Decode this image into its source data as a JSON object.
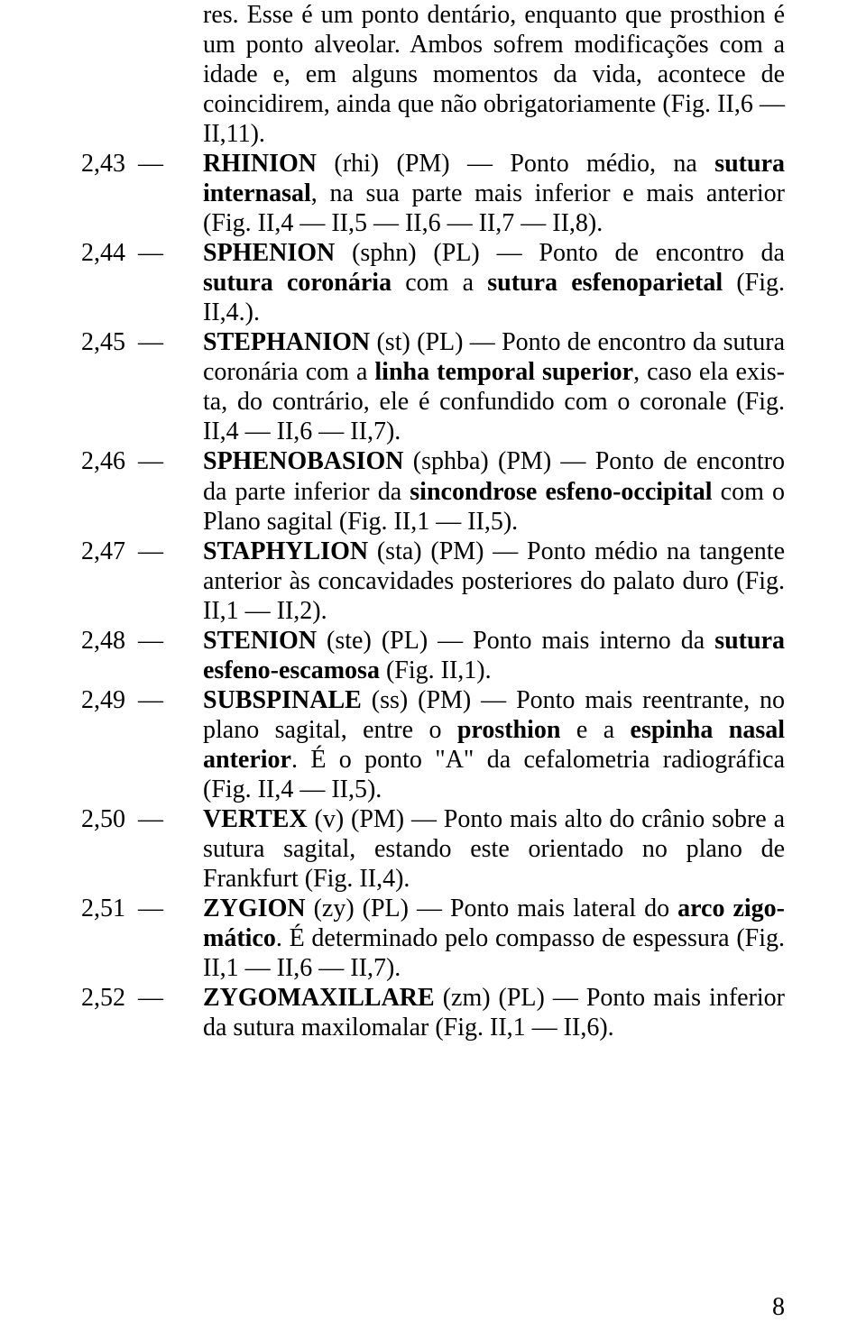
{
  "page_number": "8",
  "intro_text": "res. Esse é um ponto dentário, enquanto que prosthion é um ponto alveolar. Ambos sofrem modificações com a idade e, em alguns momentos da vida, acontece de coinci­direm, ainda que não obrigatoriamente (Fig. II,6 — II,11).",
  "entries": [
    {
      "num": "2,43",
      "sep": "—",
      "runs": [
        {
          "t": "RHINION",
          "b": true
        },
        {
          "t": " (rhi) (PM) — Ponto médio, na ",
          "b": false
        },
        {
          "t": "sutura interna­sal",
          "b": true
        },
        {
          "t": ", na sua parte mais inferior e mais anterior (Fig. II,4 — II,5 — II,6 — II,7 — II,8).",
          "b": false
        }
      ]
    },
    {
      "num": "2,44",
      "sep": "—",
      "runs": [
        {
          "t": "SPHENION",
          "b": true
        },
        {
          "t": " (sphn) (PL) — Ponto de encontro da ",
          "b": false
        },
        {
          "t": "sutura coronária",
          "b": true
        },
        {
          "t": " com a ",
          "b": false
        },
        {
          "t": "sutura esfenoparietal",
          "b": true
        },
        {
          "t": " (Fig. II,4.).",
          "b": false
        }
      ]
    },
    {
      "num": "2,45",
      "sep": "—",
      "runs": [
        {
          "t": "STEPHANION",
          "b": true
        },
        {
          "t": " (st) (PL) — Ponto de encontro da sutura coronária com a ",
          "b": false
        },
        {
          "t": "linha temporal superior",
          "b": true
        },
        {
          "t": ", caso ela exis­ta, do contrário, ele é confundido com o coronale (Fig. II,4 — II,6 — II,7).",
          "b": false
        }
      ]
    },
    {
      "num": "2,46",
      "sep": "—",
      "runs": [
        {
          "t": "SPHENOBASION",
          "b": true
        },
        {
          "t": " (sphba) (PM) — Ponto de encontro da parte inferior da ",
          "b": false
        },
        {
          "t": "sincondrose esfeno-occipital",
          "b": true
        },
        {
          "t": " com o Pla­no sagital (Fig. II,1 — II,5).",
          "b": false
        }
      ]
    },
    {
      "num": "2,47",
      "sep": "—",
      "runs": [
        {
          "t": "STAPHYLION",
          "b": true
        },
        {
          "t": " (sta) (PM) — Ponto médio na tangente anterior às concavidades posteriores do palato duro (Fig. II,1 — II,2).",
          "b": false
        }
      ]
    },
    {
      "num": "2,48",
      "sep": "—",
      "runs": [
        {
          "t": "STENION",
          "b": true
        },
        {
          "t": " (ste) (PL) — Ponto mais interno da ",
          "b": false
        },
        {
          "t": "sutura esfeno-escamosa",
          "b": true
        },
        {
          "t": " (Fig. II,1).",
          "b": false
        }
      ]
    },
    {
      "num": "2,49",
      "sep": "—",
      "runs": [
        {
          "t": "SUBSPINALE",
          "b": true
        },
        {
          "t": " (ss) (PM) — Ponto mais reentrante, no plano sagital, entre o ",
          "b": false
        },
        {
          "t": "prosthion",
          "b": true
        },
        {
          "t": " e a ",
          "b": false
        },
        {
          "t": "espinha nasal anteri­or",
          "b": true
        },
        {
          "t": ". É o ponto \"A\" da cefalometria radiográfica (Fig. II,4 — II,5).",
          "b": false
        }
      ]
    },
    {
      "num": "2,50",
      "sep": "—",
      "runs": [
        {
          "t": "VERTEX",
          "b": true
        },
        {
          "t": " (v) (PM) — Ponto mais alto do crânio sobre a sutura sagital, estando este orientado no plano de Frankfurt (Fig. II,4).",
          "b": false
        }
      ]
    },
    {
      "num": "2,51",
      "sep": "—",
      "runs": [
        {
          "t": "ZYGION",
          "b": true
        },
        {
          "t": " (zy) (PL) — Ponto mais lateral do ",
          "b": false
        },
        {
          "t": "arco zigo­mático",
          "b": true
        },
        {
          "t": ". É determinado pelo compasso de espessura (Fig. II,1 — II,6 — II,7).",
          "b": false
        }
      ]
    },
    {
      "num": "2,52",
      "sep": "—",
      "runs": [
        {
          "t": "ZYGOMAXILLARE",
          "b": true
        },
        {
          "t": " (zm) (PL) — Ponto mais inferior da sutura maxilomalar (Fig. II,1 — II,6).",
          "b": false
        }
      ]
    }
  ]
}
